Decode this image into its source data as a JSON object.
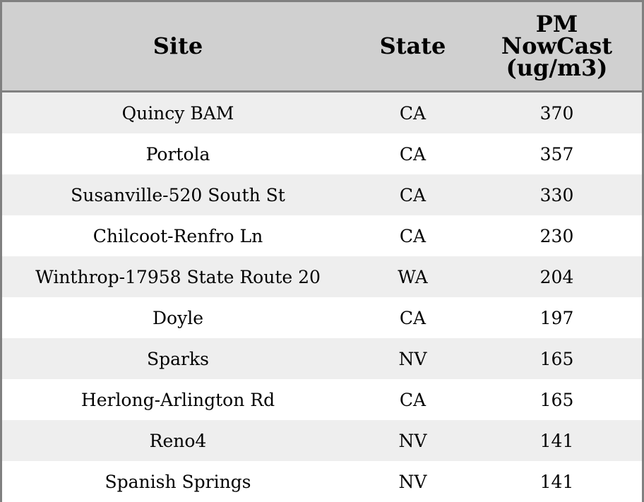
{
  "chart_data": {
    "type": "table",
    "columns": [
      "Site",
      "State",
      "PM NowCast (ug/m3)"
    ],
    "header_lines": {
      "pm": [
        "PM",
        "NowCast",
        "(ug/m3)"
      ]
    },
    "rows": [
      [
        "Quincy BAM",
        "CA",
        "370"
      ],
      [
        "Portola",
        "CA",
        "357"
      ],
      [
        "Susanville-520 South St",
        "CA",
        "330"
      ],
      [
        "Chilcoot-Renfro Ln",
        "CA",
        "230"
      ],
      [
        "Winthrop-17958 State Route 20",
        "WA",
        "204"
      ],
      [
        "Doyle",
        "CA",
        "197"
      ],
      [
        "Sparks",
        "NV",
        "165"
      ],
      [
        "Herlong-Arlington Rd",
        "CA",
        "165"
      ],
      [
        "Reno4",
        "NV",
        "141"
      ],
      [
        "Spanish Springs",
        "NV",
        "141"
      ]
    ],
    "colors": {
      "header_bg": "#d0d0d0",
      "stripe": "#eeeeee",
      "border": "#808080"
    }
  }
}
